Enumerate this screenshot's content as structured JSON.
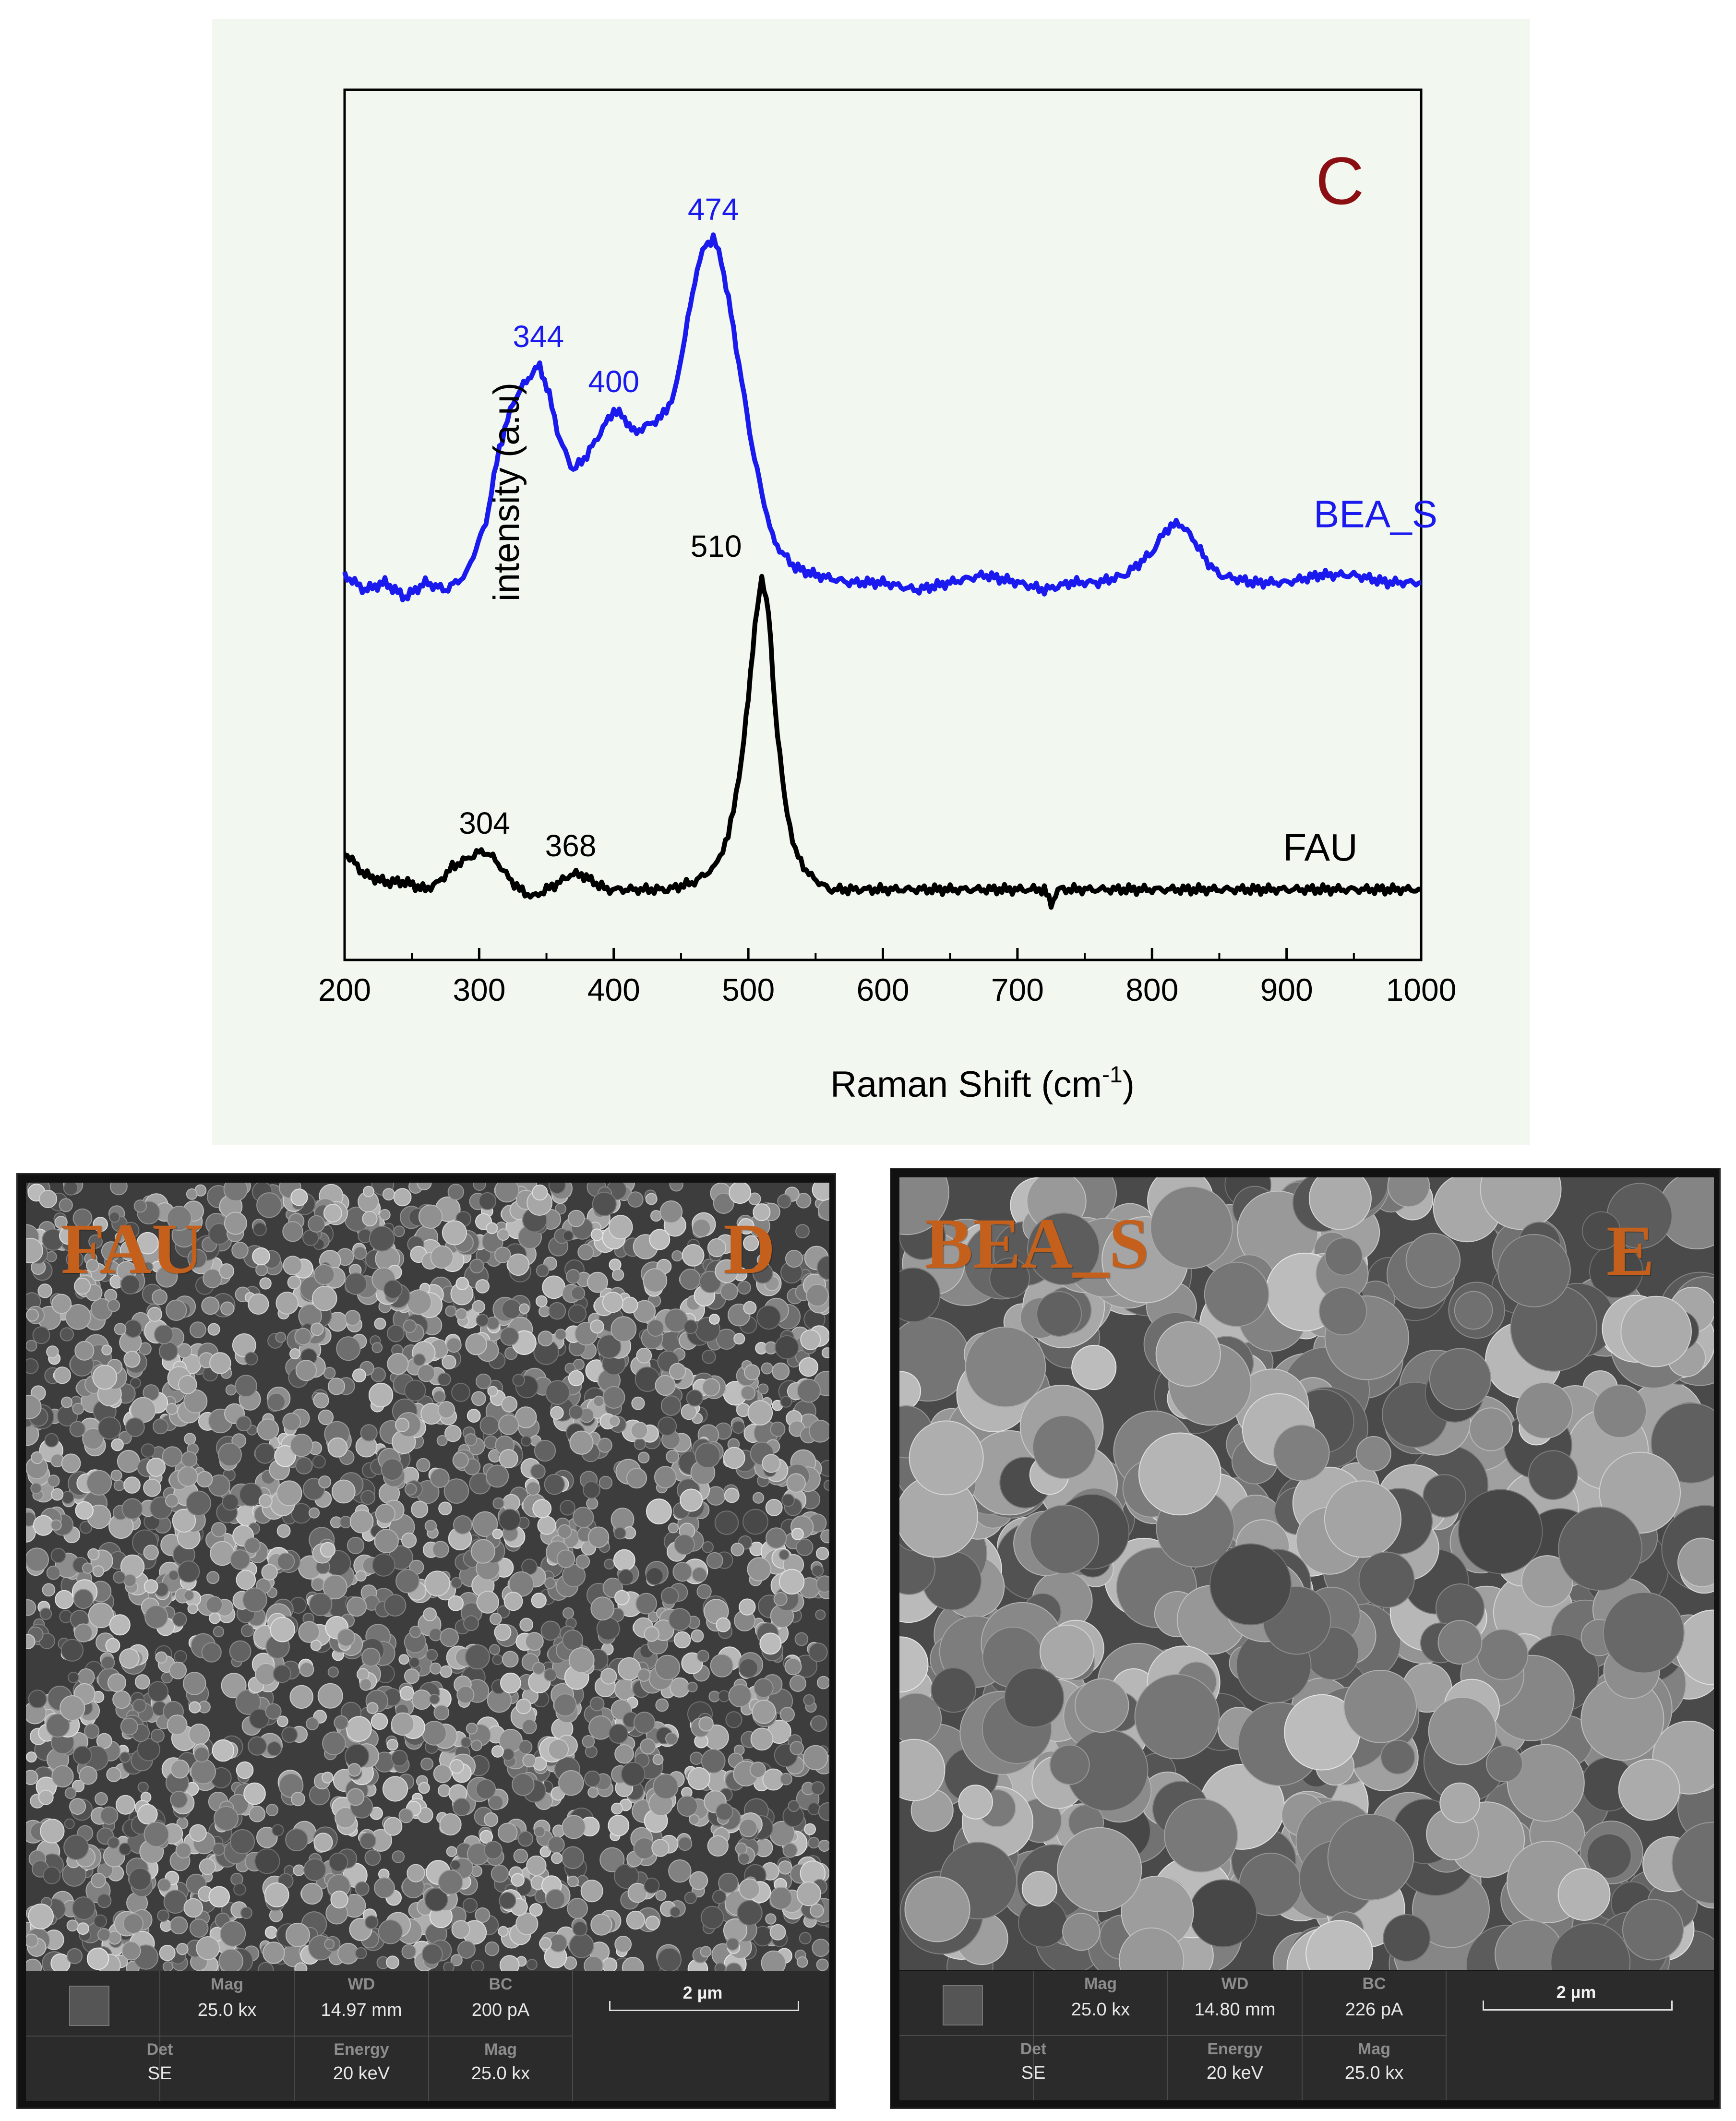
{
  "chart_data": {
    "type": "line",
    "panel_letter": "C",
    "xlabel": "Raman Shift (cm",
    "xlabel_sup": "-1",
    "xlabel_end": ")",
    "ylabel": "intensity (a.u)",
    "xlim": [
      200,
      1000
    ],
    "xticks": [
      "200",
      "300",
      "400",
      "500",
      "600",
      "700",
      "800",
      "900",
      "1000"
    ],
    "series": [
      {
        "name": "BEA_S",
        "color": "#1a1aee",
        "x": [
          200,
          215,
          230,
          245,
          260,
          275,
          290,
          305,
          315,
          325,
          335,
          340,
          345,
          352,
          360,
          370,
          380,
          390,
          400,
          408,
          415,
          425,
          435,
          445,
          455,
          462,
          468,
          474,
          480,
          487,
          495,
          503,
          510,
          518,
          525,
          535,
          550,
          575,
          600,
          625,
          650,
          675,
          700,
          720,
          740,
          760,
          780,
          800,
          810,
          820,
          830,
          840,
          850,
          875,
          900,
          925,
          950,
          975,
          1000
        ],
        "y": [
          0.45,
          0.43,
          0.44,
          0.42,
          0.44,
          0.43,
          0.45,
          0.52,
          0.62,
          0.68,
          0.71,
          0.72,
          0.73,
          0.69,
          0.63,
          0.59,
          0.61,
          0.64,
          0.67,
          0.66,
          0.64,
          0.65,
          0.66,
          0.69,
          0.79,
          0.86,
          0.89,
          0.9,
          0.87,
          0.8,
          0.71,
          0.62,
          0.56,
          0.5,
          0.48,
          0.46,
          0.45,
          0.44,
          0.44,
          0.43,
          0.44,
          0.45,
          0.44,
          0.43,
          0.44,
          0.44,
          0.45,
          0.48,
          0.51,
          0.52,
          0.5,
          0.47,
          0.45,
          0.44,
          0.44,
          0.45,
          0.45,
          0.44,
          0.44
        ],
        "peak_labels": [
          {
            "x": 344,
            "y": 0.73,
            "text": "344"
          },
          {
            "x": 400,
            "y": 0.67,
            "text": "400"
          },
          {
            "x": 474,
            "y": 0.9,
            "text": "474"
          }
        ]
      },
      {
        "name": "FAU",
        "color": "#000000",
        "x": [
          200,
          215,
          230,
          245,
          260,
          270,
          280,
          290,
          300,
          305,
          312,
          320,
          330,
          340,
          350,
          360,
          368,
          376,
          385,
          395,
          405,
          420,
          440,
          460,
          475,
          485,
          495,
          500,
          505,
          510,
          515,
          520,
          527,
          535,
          545,
          560,
          580,
          600,
          625,
          650,
          675,
          700,
          720,
          725,
          730,
          750,
          775,
          800,
          825,
          850,
          875,
          900,
          925,
          950,
          975,
          1000
        ],
        "y": [
          0.08,
          0.05,
          0.04,
          0.04,
          0.03,
          0.04,
          0.06,
          0.07,
          0.08,
          0.08,
          0.07,
          0.05,
          0.03,
          0.02,
          0.03,
          0.04,
          0.05,
          0.05,
          0.04,
          0.03,
          0.03,
          0.03,
          0.03,
          0.04,
          0.06,
          0.1,
          0.2,
          0.29,
          0.38,
          0.45,
          0.4,
          0.27,
          0.15,
          0.08,
          0.05,
          0.03,
          0.03,
          0.03,
          0.03,
          0.03,
          0.03,
          0.03,
          0.03,
          0.01,
          0.03,
          0.03,
          0.03,
          0.03,
          0.03,
          0.03,
          0.03,
          0.03,
          0.03,
          0.03,
          0.03,
          0.03
        ],
        "peak_labels": [
          {
            "x": 304,
            "y": 0.08,
            "text": "304"
          },
          {
            "x": 368,
            "y": 0.05,
            "text": "368"
          },
          {
            "x": 510,
            "y": 0.45,
            "text": "510"
          }
        ]
      }
    ]
  },
  "sem_panels": [
    {
      "sample_label": "FAU",
      "panel_letter": "D",
      "mag_label": "Mag",
      "mag_value": "25.0 kx",
      "wd_label": "WD",
      "wd_value": "14.97 mm",
      "bc_label": "BC",
      "bc_value": "200 pA",
      "det_label": "Det",
      "det_value": "SE",
      "energy_label": "Energy",
      "energy_value": "20 keV",
      "mag2_label": "Mag",
      "mag2_value": "25.0 kx",
      "scale_text": "2 µm"
    },
    {
      "sample_label": "BEA_S",
      "panel_letter": "E",
      "mag_label": "Mag",
      "mag_value": "25.0 kx",
      "wd_label": "WD",
      "wd_value": "14.80 mm",
      "bc_label": "BC",
      "bc_value": "226 pA",
      "det_label": "Det",
      "det_value": "SE",
      "energy_label": "Energy",
      "energy_value": "20 keV",
      "mag2_label": "Mag",
      "mag2_value": "25.0 kx",
      "scale_text": "2 µm"
    }
  ]
}
